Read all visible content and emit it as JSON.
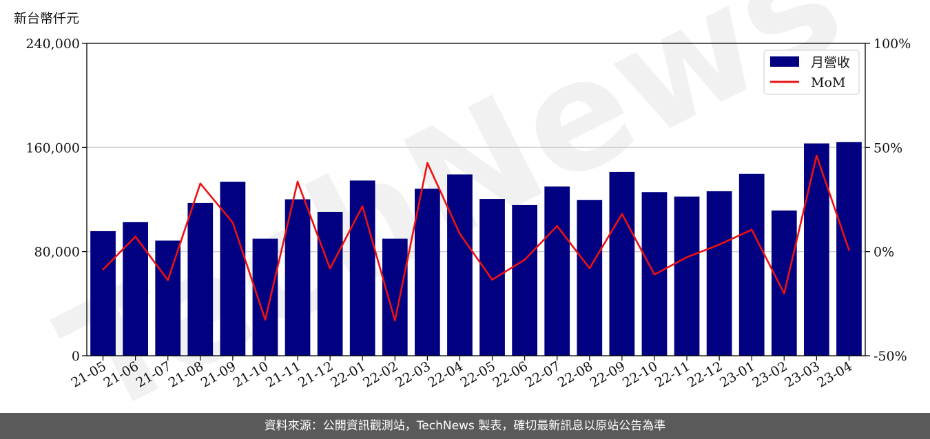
{
  "chart_data": {
    "type": "bar",
    "unit_label": "新台幣仟元",
    "categories": [
      "21-05",
      "21-06",
      "21-07",
      "21-08",
      "21-09",
      "21-10",
      "21-11",
      "21-12",
      "22-01",
      "22-02",
      "22-03",
      "22-04",
      "22-05",
      "22-06",
      "22-07",
      "22-08",
      "22-09",
      "22-10",
      "22-11",
      "22-12",
      "23-01",
      "23-02",
      "23-03",
      "23-04"
    ],
    "series": [
      {
        "name": "月營收",
        "type": "bar",
        "axis": "left",
        "color": "#000080",
        "values": [
          95700,
          102600,
          88500,
          117400,
          133700,
          90000,
          120200,
          110500,
          134600,
          90000,
          128300,
          139300,
          120500,
          115800,
          130000,
          119600,
          141200,
          125700,
          122300,
          126400,
          139700,
          111600,
          163100,
          164200
        ]
      },
      {
        "name": "MoM",
        "type": "line",
        "axis": "right",
        "color": "#ee1111",
        "values": [
          -8.6,
          7.2,
          -13.7,
          32.7,
          13.9,
          -32.7,
          33.6,
          -8.1,
          21.8,
          -33.1,
          42.6,
          8.5,
          -13.5,
          -3.9,
          12.3,
          -8.0,
          18.1,
          -11.0,
          -2.7,
          3.4,
          10.5,
          -20.1,
          46.1,
          0.7
        ]
      }
    ],
    "y_left": {
      "range": [
        0,
        240000
      ],
      "ticks": [
        "0",
        "80,000",
        "160,000",
        "240,000"
      ]
    },
    "y_right": {
      "range": [
        -50,
        100
      ],
      "ticks": [
        "-50%",
        "0%",
        "50%",
        "100%"
      ]
    },
    "grid": "horizontal",
    "legend": "top-right"
  },
  "watermark": "TechNews",
  "footer": "資料來源：公開資訊觀測站，TechNews 製表，確切最新訊息以原站公告為準"
}
